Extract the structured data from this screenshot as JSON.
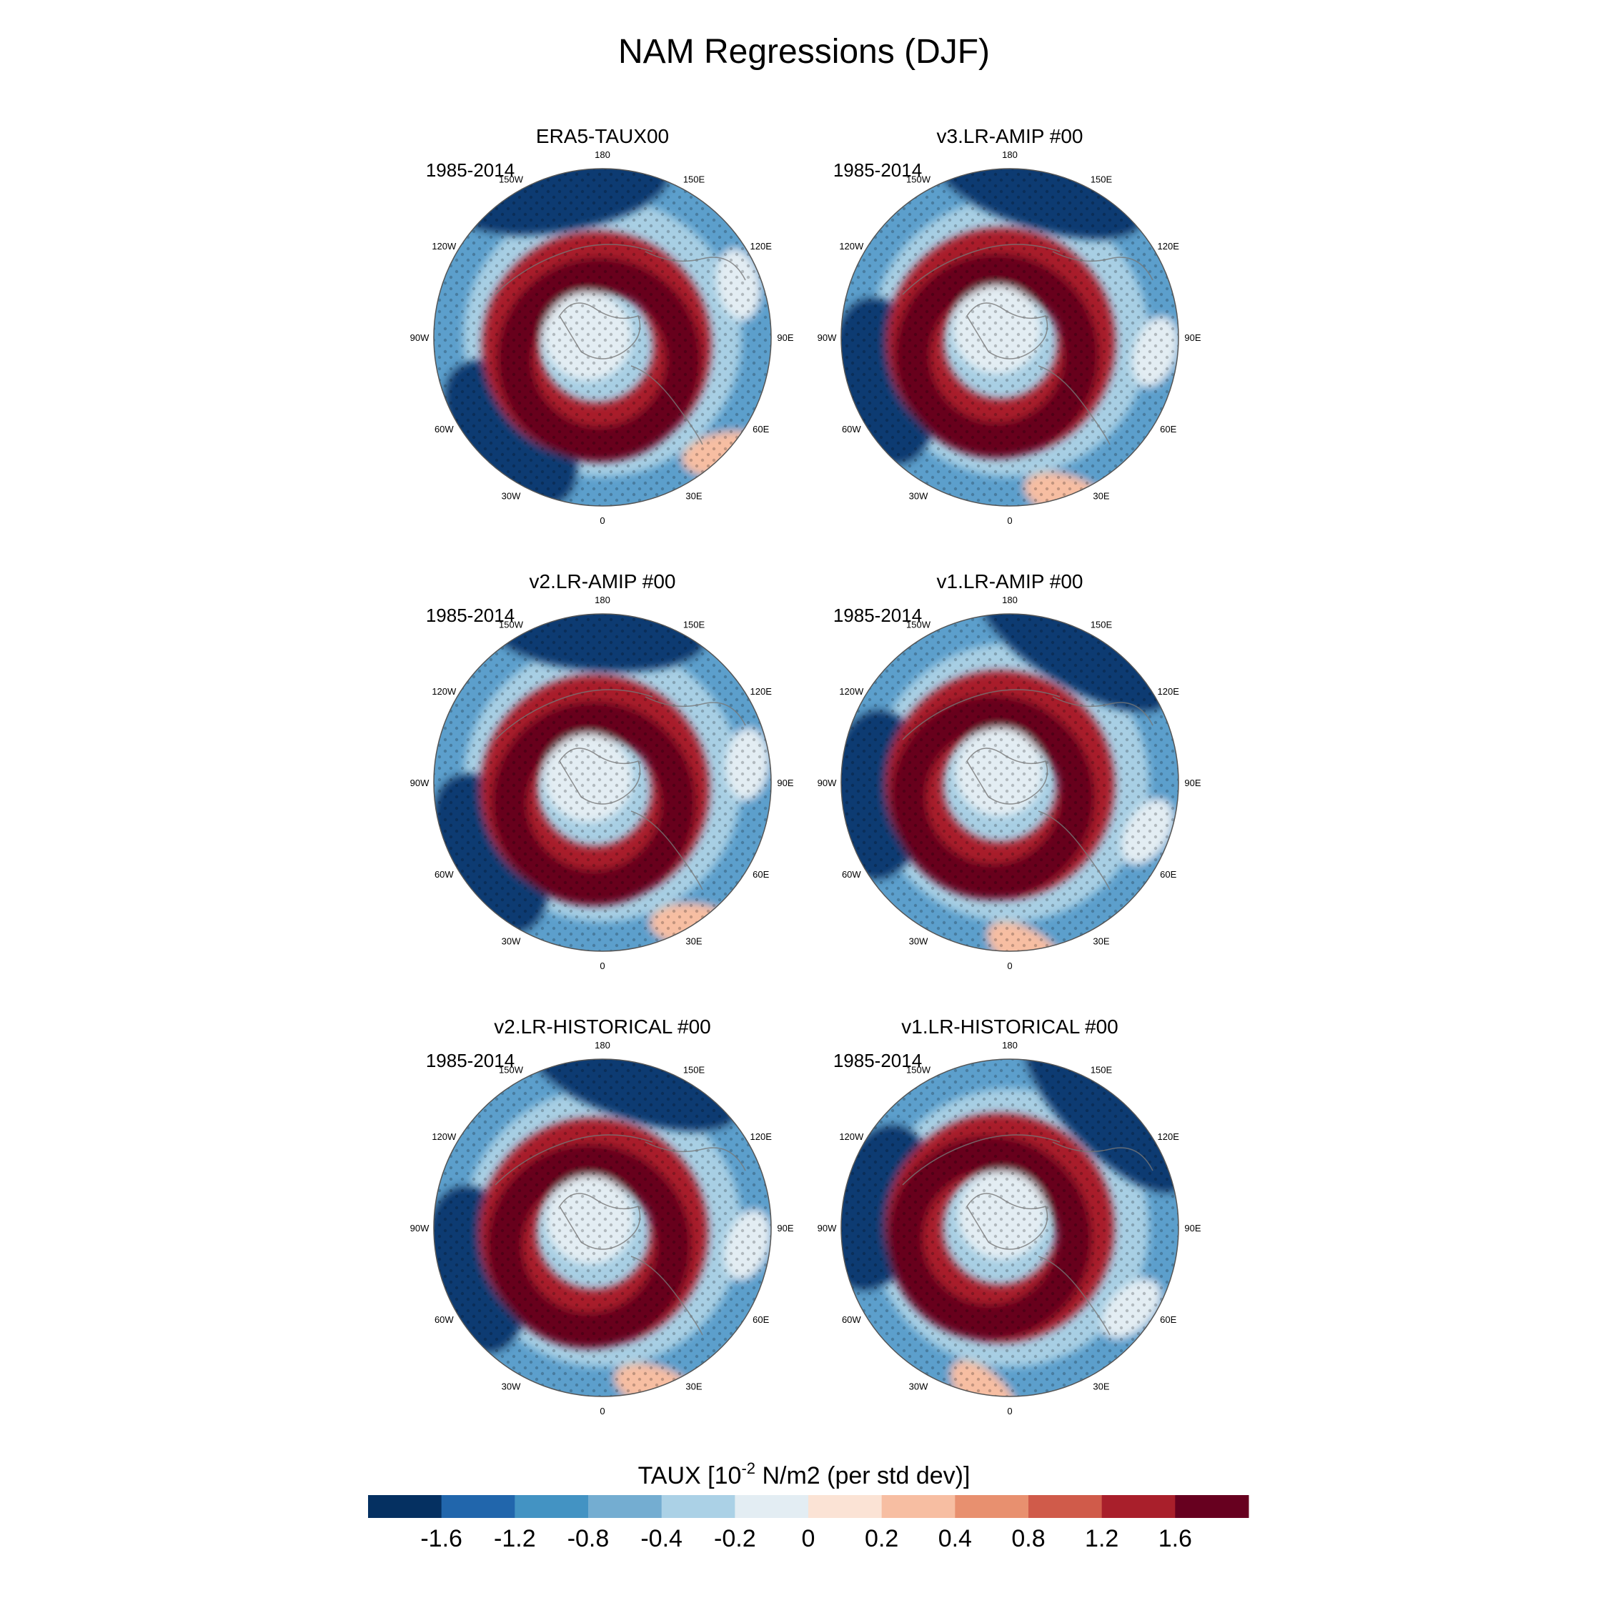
{
  "figure": {
    "title": "NAM Regressions (DJF)"
  },
  "panels": [
    {
      "title": "ERA5-TAUX00",
      "period": "1985-2014"
    },
    {
      "title": "v3.LR-AMIP  #00",
      "period": "1985-2014"
    },
    {
      "title": "v2.LR-AMIP  #00",
      "period": "1985-2014"
    },
    {
      "title": "v1.LR-AMIP  #00",
      "period": "1985-2014"
    },
    {
      "title": "v2.LR-HISTORICAL  #00",
      "period": "1985-2014"
    },
    {
      "title": "v1.LR-HISTORICAL  #00",
      "period": "1985-2014"
    }
  ],
  "longitude_labels": [
    "180",
    "150E",
    "120E",
    "90E",
    "60E",
    "30E",
    "0",
    "30W",
    "60W",
    "90W",
    "120W",
    "150W"
  ],
  "colorbar": {
    "title_main": "TAUX [10",
    "title_sup": "-2",
    "title_rest": " N/m2 (per std dev)]",
    "labels": [
      "-1.6",
      "-1.2",
      "-0.8",
      "-0.4",
      "-0.2",
      "0",
      "0.2",
      "0.4",
      "0.8",
      "1.2",
      "1.6"
    ],
    "colors": [
      "#053061",
      "#2166ac",
      "#4393c3",
      "#74add1",
      "#abd1e6",
      "#e3edf3",
      "#fbe3d5",
      "#f7bea2",
      "#e8906f",
      "#d05b4a",
      "#a91f2b",
      "#67001f"
    ]
  }
}
